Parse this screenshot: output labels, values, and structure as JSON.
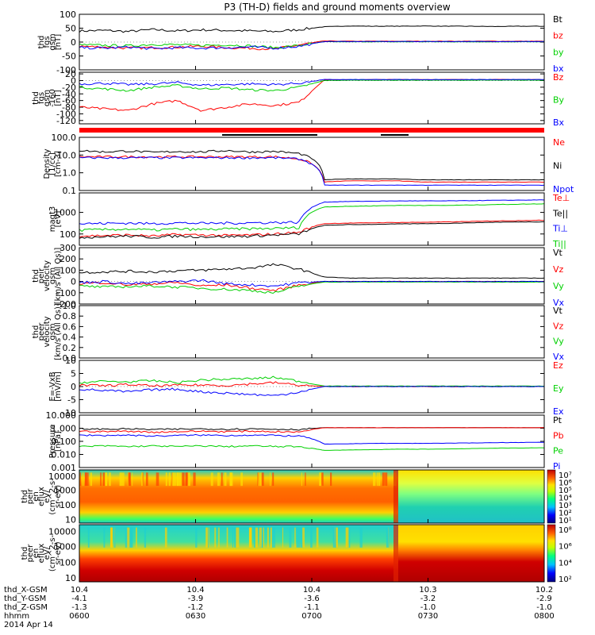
{
  "title": "P3 (TH-D) fields and ground moments overview",
  "colors": {
    "black": "#000000",
    "red": "#ff0000",
    "green": "#00d000",
    "blue": "#0000ff",
    "limegreen": "#00e000"
  },
  "chart_data": [
    {
      "type": "line",
      "panel": "fgs",
      "ylabel_lines": [
        "thd",
        "fgs",
        "gsm",
        "[nT]"
      ],
      "ylim": [
        -100,
        100
      ],
      "yticks": [
        "100",
        "50",
        "0",
        "-50",
        "-100"
      ],
      "series": [
        {
          "name": "Bt",
          "color": "#000000",
          "values": [
            40,
            42,
            38,
            45,
            40,
            44,
            42,
            40,
            38,
            45,
            55,
            58,
            57,
            57,
            58,
            57,
            57,
            56,
            57,
            57
          ]
        },
        {
          "name": "bz",
          "color": "#ff0000",
          "values": [
            -15,
            -18,
            -22,
            -20,
            -18,
            -15,
            -20,
            -22,
            -25,
            -10,
            4,
            3,
            3,
            3,
            3,
            3,
            3,
            3,
            3,
            3
          ]
        },
        {
          "name": "by",
          "color": "#00d000",
          "values": [
            -10,
            -12,
            -14,
            -8,
            -10,
            -12,
            -10,
            -14,
            -20,
            -12,
            1,
            1,
            1,
            1,
            1,
            1,
            1,
            1,
            1,
            1
          ]
        },
        {
          "name": "bx",
          "color": "#0000ff",
          "values": [
            -20,
            -22,
            -18,
            -24,
            -20,
            -22,
            -20,
            -18,
            -22,
            -15,
            2,
            2,
            2,
            2,
            2,
            2,
            2,
            2,
            2,
            2
          ]
        }
      ]
    },
    {
      "type": "line",
      "panel": "fgs2",
      "ylabel_lines": [
        "thd",
        "fgs",
        "gsm",
        "-160",
        "[nT]"
      ],
      "ylim": [
        -130,
        25
      ],
      "yticks": [
        "20",
        "0",
        "-20",
        "-40",
        "-60",
        "-80",
        "-100",
        "-120"
      ],
      "series": [
        {
          "name": "Bz",
          "color": "#ff0000",
          "values": [
            -80,
            -85,
            -90,
            -70,
            -60,
            -90,
            -80,
            -70,
            -75,
            -65,
            2,
            2,
            3,
            3,
            3,
            3,
            3,
            3,
            3,
            3
          ]
        },
        {
          "name": "By",
          "color": "#00d000",
          "values": [
            -20,
            -25,
            -30,
            -20,
            -15,
            -25,
            -22,
            -28,
            -30,
            -20,
            0,
            1,
            1,
            1,
            1,
            1,
            1,
            1,
            1,
            1
          ]
        },
        {
          "name": "Bx",
          "color": "#0000ff",
          "values": [
            -10,
            -8,
            -12,
            -10,
            -6,
            -14,
            -12,
            -10,
            -12,
            -8,
            3,
            3,
            3,
            3,
            3,
            3,
            3,
            3,
            3,
            3
          ]
        }
      ]
    },
    {
      "type": "line",
      "panel": "density",
      "ylabel_lines": [
        "Density",
        "[1/cc]",
        "[cm-3]"
      ],
      "log": true,
      "ylim": [
        0.1,
        100
      ],
      "yticks": [
        "100.0",
        "10.0",
        "1.0",
        "0.1"
      ],
      "series": [
        {
          "name": "Ne",
          "color": "#ff0000",
          "values": [
            8,
            8,
            8,
            8,
            8,
            8,
            8,
            8,
            8,
            6,
            0.3,
            0.35,
            0.35,
            0.35,
            0.3,
            0.3,
            0.3,
            0.3,
            0.3,
            0.3
          ]
        },
        {
          "name": "Ni",
          "color": "#000000",
          "values": [
            18,
            15,
            17,
            14,
            16,
            15,
            18,
            15,
            16,
            12,
            0.4,
            0.45,
            0.45,
            0.45,
            0.4,
            0.4,
            0.4,
            0.4,
            0.4,
            0.4
          ]
        },
        {
          "name": "Npot",
          "color": "#0000ff",
          "values": [
            7,
            7,
            7,
            7,
            7,
            7,
            7,
            7,
            7,
            6,
            0.2,
            0.2,
            0.2,
            0.2,
            0.2,
            0.2,
            0.2,
            0.2,
            0.2,
            0.2
          ]
        }
      ]
    },
    {
      "type": "line",
      "panel": "temperature",
      "ylabel_lines": [
        "magt3",
        "[eV]"
      ],
      "log": true,
      "ylim": [
        30,
        8000
      ],
      "yticks": [
        "1000",
        "100"
      ],
      "series": [
        {
          "name": "Te⊥",
          "color": "#ff0000",
          "values": [
            80,
            85,
            90,
            80,
            95,
            90,
            85,
            90,
            100,
            120,
            300,
            320,
            330,
            340,
            350,
            360,
            380,
            400,
            420,
            430
          ]
        },
        {
          "name": "Te||",
          "color": "#000000",
          "values": [
            70,
            75,
            80,
            70,
            80,
            75,
            75,
            80,
            90,
            100,
            250,
            270,
            280,
            290,
            300,
            310,
            330,
            350,
            360,
            370
          ]
        },
        {
          "name": "Ti⊥",
          "color": "#0000ff",
          "values": [
            300,
            310,
            320,
            300,
            330,
            310,
            320,
            330,
            340,
            350,
            3000,
            3200,
            3300,
            3400,
            3400,
            3400,
            3500,
            3600,
            3700,
            3800
          ]
        },
        {
          "name": "Ti||",
          "color": "#00d000",
          "values": [
            150,
            160,
            170,
            150,
            170,
            160,
            170,
            175,
            180,
            200,
            1800,
            1900,
            2000,
            2100,
            2100,
            2100,
            2200,
            2300,
            2400,
            2500
          ]
        }
      ]
    },
    {
      "type": "line",
      "panel": "peir_velocity",
      "ylabel_lines": [
        "thd",
        "peir",
        "velocity",
        "gsm",
        "[km/s (All Qs)]"
      ],
      "ylim": [
        -200,
        300
      ],
      "yticks": [
        "300",
        "200",
        "100",
        "0",
        "-100",
        "-200"
      ],
      "series": [
        {
          "name": "Vt",
          "color": "#000000",
          "values": [
            80,
            85,
            90,
            85,
            95,
            100,
            110,
            120,
            150,
            110,
            40,
            30,
            30,
            30,
            30,
            30,
            30,
            30,
            30,
            30
          ]
        },
        {
          "name": "Vz",
          "color": "#ff0000",
          "values": [
            -20,
            -10,
            -30,
            -20,
            -10,
            -40,
            -30,
            -60,
            -80,
            -30,
            0,
            0,
            0,
            0,
            0,
            0,
            0,
            0,
            0,
            0
          ]
        },
        {
          "name": "Vy",
          "color": "#00d000",
          "values": [
            -40,
            -50,
            -45,
            -40,
            -50,
            -60,
            -70,
            -80,
            -100,
            -40,
            -5,
            -5,
            -5,
            -5,
            -5,
            -5,
            -5,
            -5,
            -5,
            -5
          ]
        },
        {
          "name": "Vx",
          "color": "#0000ff",
          "values": [
            -10,
            0,
            -20,
            -10,
            0,
            10,
            -20,
            -30,
            -40,
            -10,
            0,
            0,
            0,
            0,
            0,
            0,
            0,
            0,
            0,
            0
          ]
        }
      ]
    },
    {
      "type": "line",
      "panel": "peer_velocity",
      "ylabel_lines": [
        "thd",
        "peer",
        "velocity",
        "gsm",
        "[km/s (All Qs)]"
      ],
      "ylim": [
        0,
        1
      ],
      "yticks": [
        "1.0",
        "0.8",
        "0.6",
        "0.4",
        "0.2",
        "0.0"
      ],
      "series": [
        {
          "name": "Vt",
          "color": "#000000",
          "values": []
        },
        {
          "name": "Vz",
          "color": "#ff0000",
          "values": []
        },
        {
          "name": "Vy",
          "color": "#00d000",
          "values": []
        },
        {
          "name": "Vx",
          "color": "#0000ff",
          "values": []
        }
      ]
    },
    {
      "type": "line",
      "panel": "efield",
      "ylabel_lines": [
        "E=-VxB",
        "[mV/m]"
      ],
      "ylim": [
        -10,
        10
      ],
      "yticks": [
        "10",
        "5",
        "0",
        "-5",
        "-10"
      ],
      "series": [
        {
          "name": "Ez",
          "color": "#ff0000",
          "values": [
            0.5,
            0.3,
            0.8,
            0.2,
            0.5,
            0.6,
            0.4,
            1.0,
            1.5,
            0.5,
            0,
            0,
            0,
            0,
            0,
            0,
            0,
            0,
            0,
            0
          ]
        },
        {
          "name": "Ey",
          "color": "#00d000",
          "values": [
            1.5,
            2,
            1.8,
            2.2,
            1.5,
            2.5,
            2.8,
            3,
            3.5,
            2,
            0.2,
            0.2,
            0.2,
            0.2,
            0.2,
            0.2,
            0.2,
            0.2,
            0.2,
            0.2
          ]
        },
        {
          "name": "Ex",
          "color": "#0000ff",
          "values": [
            -1,
            -1.5,
            -2,
            -1.2,
            -1,
            -2,
            -2.5,
            -3,
            -3.5,
            -2,
            0,
            0,
            0,
            0,
            0,
            0,
            0,
            0,
            0,
            0
          ]
        }
      ]
    },
    {
      "type": "line",
      "panel": "pressure",
      "ylabel_lines": [
        "Pressure",
        "[nPa]"
      ],
      "log": true,
      "ylim": [
        0.001,
        10
      ],
      "yticks": [
        "10.000",
        "1.000",
        "0.100",
        "0.010",
        "0.001"
      ],
      "series": [
        {
          "name": "Pt",
          "color": "#000000",
          "values": [
            0.9,
            0.85,
            0.9,
            0.8,
            0.85,
            0.9,
            0.85,
            0.9,
            0.85,
            0.8,
            1.1,
            1.1,
            1.1,
            1.1,
            1.1,
            1.1,
            1.1,
            1.1,
            1.1,
            1.1
          ]
        },
        {
          "name": "Pb",
          "color": "#ff0000",
          "values": [
            0.6,
            0.55,
            0.6,
            0.5,
            0.55,
            0.6,
            0.55,
            0.6,
            0.55,
            0.5,
            1.1,
            1.1,
            1.1,
            1.1,
            1.1,
            1.1,
            1.1,
            1.1,
            1.1,
            1.1
          ]
        },
        {
          "name": "Pe",
          "color": "#00d000",
          "values": [
            0.04,
            0.045,
            0.04,
            0.045,
            0.04,
            0.045,
            0.04,
            0.045,
            0.04,
            0.04,
            0.02,
            0.022,
            0.023,
            0.025,
            0.025,
            0.026,
            0.028,
            0.03,
            0.031,
            0.032
          ]
        },
        {
          "name": "Pi",
          "color": "#0000ff",
          "values": [
            0.3,
            0.28,
            0.3,
            0.25,
            0.28,
            0.3,
            0.28,
            0.3,
            0.28,
            0.25,
            0.06,
            0.065,
            0.07,
            0.07,
            0.07,
            0.072,
            0.075,
            0.08,
            0.082,
            0.085
          ]
        }
      ]
    },
    {
      "type": "heatmap",
      "panel": "peir_eflux",
      "ylabel_lines": [
        "thd",
        "peir",
        "en",
        "eflux",
        "eV/",
        "(cm^2-s-",
        "sr-eV)"
      ],
      "yticks": [
        "10000",
        "1000",
        "100",
        "10"
      ],
      "colorbar_ticks": [
        "10⁷",
        "10⁶",
        "10⁵",
        "10⁴",
        "10³",
        "10²",
        "10¹"
      ]
    },
    {
      "type": "heatmap",
      "panel": "peer_eflux",
      "ylabel_lines": [
        "thd",
        "peer",
        "en",
        "eflux",
        "eV/",
        "(cm^2-s-",
        "sr-eV)"
      ],
      "yticks": [
        "10000",
        "1000",
        "100",
        "10"
      ],
      "colorbar_ticks": [
        "10⁸",
        "10⁶",
        "10⁴",
        "10²"
      ]
    }
  ],
  "xaxis": {
    "row_labels": [
      "thd_X-GSM",
      "thd_Y-GSM",
      "thd_Z-GSM",
      "hhmm",
      "2014 Apr 14"
    ],
    "ticks": [
      {
        "x": "10.4",
        "y": "-4.1",
        "z": "-1.3",
        "t": "0600"
      },
      {
        "x": "10.4",
        "y": "-3.9",
        "z": "-1.2",
        "t": "0630"
      },
      {
        "x": "10.4",
        "y": "-3.6",
        "z": "-1.1",
        "t": "0700"
      },
      {
        "x": "10.3",
        "y": "-3.2",
        "z": "-1.0",
        "t": "0730"
      },
      {
        "x": "10.2",
        "y": "-2.9",
        "z": "-1.0",
        "t": "0800"
      }
    ]
  }
}
